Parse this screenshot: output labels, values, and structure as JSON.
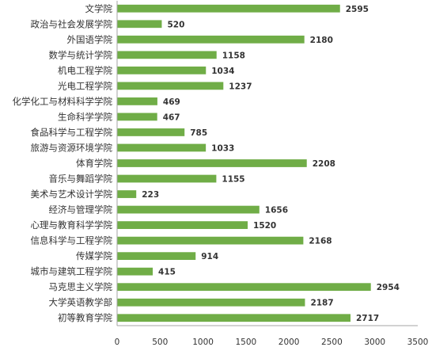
{
  "chart_data": {
    "type": "bar",
    "orientation": "horizontal",
    "categories": [
      "文学院",
      "政治与社会发展学院",
      "外国语学院",
      "数学与统计学院",
      "机电工程学院",
      "光电工程学院",
      "化学化工与材料科学学院",
      "生命科学学院",
      "食品科学与工程学院",
      "旅游与资源环境学院",
      "体育学院",
      "音乐与舞蹈学院",
      "美术与艺术设计学院",
      "经济与管理学院",
      "心理与教育科学学院",
      "信息科学与工程学院",
      "传媒学院",
      "城市与建筑工程学院",
      "马克思主义学院",
      "大学英语教学部",
      "初等教育学院"
    ],
    "values": [
      2595,
      520,
      2180,
      1158,
      1034,
      1237,
      469,
      467,
      785,
      1033,
      2208,
      1155,
      223,
      1656,
      1520,
      2168,
      914,
      415,
      2954,
      2187,
      2717
    ],
    "xlim": [
      0,
      3500
    ],
    "xticks": [
      0,
      500,
      1000,
      1500,
      2000,
      2500,
      3000,
      3500
    ],
    "title": "",
    "xlabel": "",
    "ylabel": "",
    "grid": false,
    "legend": "none",
    "bar_color": "#70AD47",
    "axis_color": "#A6A6A6"
  }
}
